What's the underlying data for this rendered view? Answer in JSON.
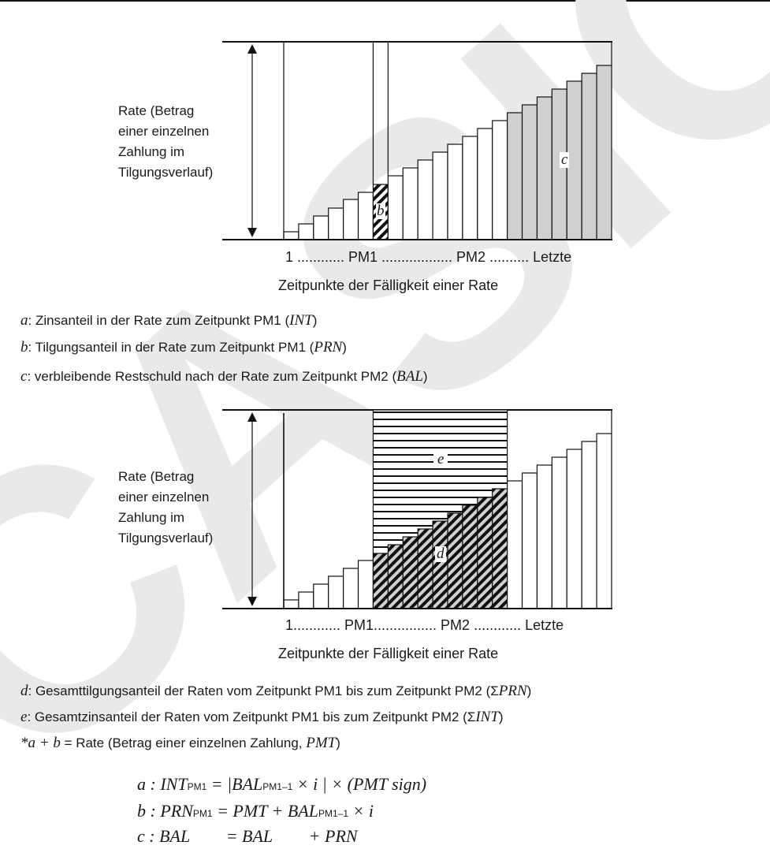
{
  "watermark": "CASIO",
  "diagram1": {
    "ylabel": [
      "Rate (Betrag",
      "einer einzelnen",
      "Zahlung im",
      "Tilgungsverlauf)"
    ],
    "xticks": "1 ............ PM1 .................. PM2 .......... Letzte",
    "xlabel": "Zeitpunkte der Fälligkeit einer Rate",
    "marks": {
      "b": "b",
      "c": "c"
    }
  },
  "legend1": [
    {
      "key": "a",
      "text": ": Zinsanteil in der Rate zum Zeitpunkt PM1 (",
      "sym": "INT",
      "end": ")"
    },
    {
      "key": "b",
      "text": ": Tilgungsanteil in der Rate zum Zeitpunkt PM1 (",
      "sym": "PRN",
      "end": ")"
    },
    {
      "key": "c",
      "text": ": verbleibende Restschuld nach der Rate zum Zeitpunkt PM2 (",
      "sym": "BAL",
      "end": ")"
    }
  ],
  "diagram2": {
    "ylabel": [
      "Rate (Betrag",
      "einer einzelnen",
      "Zahlung im",
      "Tilgungsverlauf)"
    ],
    "xticks": "1............ PM1................ PM2 ............ Letzte",
    "xlabel": "Zeitpunkte der Fälligkeit einer Rate",
    "marks": {
      "d": "d",
      "e": "e"
    }
  },
  "legend2": [
    {
      "key": "d",
      "text": ": Gesamttilgungsanteil der Raten vom Zeitpunkt PM1 bis zum Zeitpunkt PM2 (Σ",
      "sym": "PRN",
      "end": ")"
    },
    {
      "key": "e",
      "text": ": Gesamtzinsanteil der Raten vom Zeitpunkt PM1 bis zum Zeitpunkt PM2 (Σ",
      "sym": "INT",
      "end": ")"
    },
    {
      "key": "*a + b",
      "text": " = Rate (Betrag einer einzelnen Zahlung, ",
      "sym": "PMT",
      "end": ")"
    }
  ],
  "formulas": [
    {
      "lhs": "a : INT",
      "sub": "PM1",
      "rhs": " = |BAL",
      "sub2": "PM1–1",
      "rest": " × i | × (PMT sign)"
    },
    {
      "lhs": "b : PRN",
      "sub": "PM1",
      "rhs": " = PMT + BAL",
      "sub2": "PM1–1",
      "rest": " × i"
    },
    {
      "lhs": "c : BAL",
      "sub": "",
      "rhs": " = BAL",
      "sub2": "",
      "rest": " + PRN"
    }
  ]
}
